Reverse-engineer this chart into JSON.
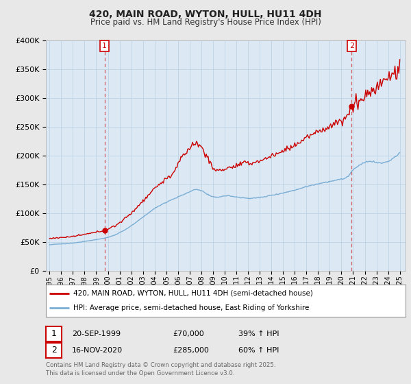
{
  "title1": "420, MAIN ROAD, WYTON, HULL, HU11 4DH",
  "title2": "Price paid vs. HM Land Registry's House Price Index (HPI)",
  "legend_line1": "420, MAIN ROAD, WYTON, HULL, HU11 4DH (semi-detached house)",
  "legend_line2": "HPI: Average price, semi-detached house, East Riding of Yorkshire",
  "sale1_date": "20-SEP-1999",
  "sale1_price": 70000,
  "sale1_hpi": "39% ↑ HPI",
  "sale2_date": "16-NOV-2020",
  "sale2_price": 285000,
  "sale2_hpi": "60% ↑ HPI",
  "footer": "Contains HM Land Registry data © Crown copyright and database right 2025.\nThis data is licensed under the Open Government Licence v3.0.",
  "property_color": "#cc0000",
  "hpi_color": "#7aadd4",
  "vline_color": "#cc0000",
  "background_color": "#e8e8e8",
  "plot_bg_color": "#dce9f5",
  "ylim": [
    0,
    400000
  ],
  "sale1_t": 1999.708,
  "sale2_t": 2020.875
}
